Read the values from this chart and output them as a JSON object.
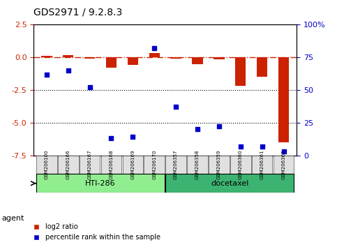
{
  "title": "GDS2971 / 9.2.8.3",
  "samples": [
    "GSM206100",
    "GSM206166",
    "GSM206167",
    "GSM206168",
    "GSM206169",
    "GSM206170",
    "GSM206357",
    "GSM206358",
    "GSM206359",
    "GSM206360",
    "GSM206361",
    "GSM206362"
  ],
  "log2_ratio": [
    0.1,
    0.15,
    -0.1,
    -0.8,
    -0.55,
    0.35,
    -0.1,
    -0.5,
    -0.15,
    -2.2,
    -1.5,
    -6.5
  ],
  "percentile_rank": [
    62,
    65,
    52,
    13,
    14,
    82,
    37,
    20,
    22,
    7,
    7,
    3
  ],
  "groups": [
    {
      "label": "HTI-286",
      "start": 0,
      "end": 5,
      "color": "#90EE90"
    },
    {
      "label": "docetaxel",
      "start": 6,
      "end": 11,
      "color": "#3CB371"
    }
  ],
  "bar_color": "#CC2200",
  "scatter_color": "#0000CC",
  "ylim_left": [
    -7.5,
    2.5
  ],
  "ylim_right": [
    0,
    100
  ],
  "right_yticks": [
    0,
    25,
    50,
    75,
    100
  ],
  "right_yticklabels": [
    "0",
    "25",
    "50",
    "75",
    "100%"
  ],
  "left_yticks": [
    -7.5,
    -5.0,
    -2.5,
    0.0,
    2.5
  ],
  "hline_y": 0.0,
  "dotted_lines": [
    -2.5,
    -5.0
  ],
  "legend_items": [
    {
      "label": "log2 ratio",
      "color": "#CC2200",
      "marker": "s"
    },
    {
      "label": "percentile rank within the sample",
      "color": "#0000CC",
      "marker": "s"
    }
  ],
  "background_color": "#ffffff",
  "plot_bg": "#ffffff",
  "agent_label": "agent",
  "group_row_color": "#e0e0e0",
  "group_border_color": "#555555"
}
